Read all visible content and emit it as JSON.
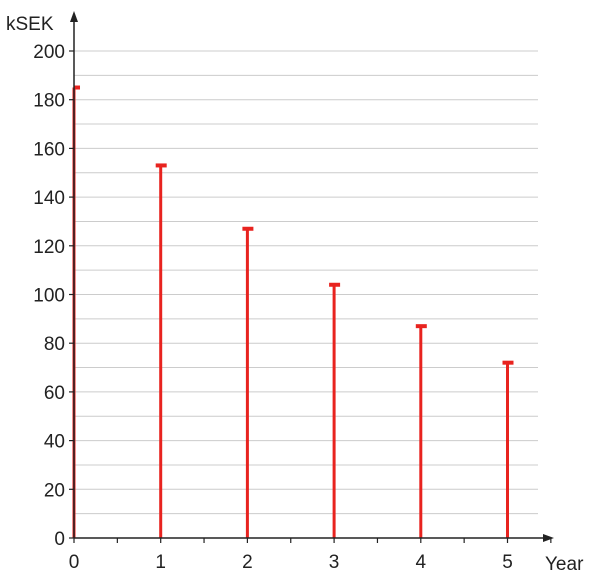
{
  "chart_data": {
    "type": "stem",
    "x": [
      0,
      1,
      2,
      3,
      4,
      5
    ],
    "values": [
      185,
      153,
      127,
      104,
      87,
      72
    ],
    "xlabel": "Year",
    "ylabel": "kSEK",
    "ylim": [
      0,
      200
    ],
    "y_ticks": [
      0,
      20,
      40,
      60,
      80,
      100,
      120,
      140,
      160,
      180,
      200
    ],
    "x_ticks": [
      0,
      1,
      2,
      3,
      4,
      5
    ],
    "y_minor_step": 10,
    "x_minor_step": 0.5,
    "grid": true,
    "colors": {
      "stem": "#e8231f",
      "axis": "#222222",
      "grid": "#cccccc"
    }
  }
}
